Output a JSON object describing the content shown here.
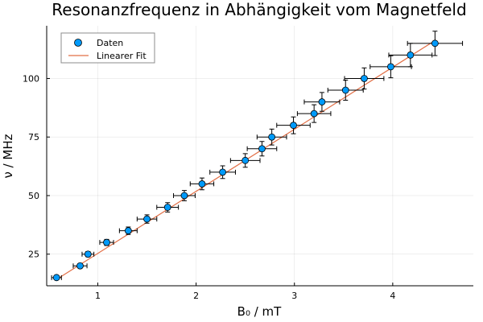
{
  "chart_data": {
    "type": "scatter",
    "title": "Resonanzfrequenz in Abhängigkeit vom Magnetfeld",
    "xlabel": "B₀ / mT",
    "ylabel": "ν / MHz",
    "xlim": [
      0.48,
      4.82
    ],
    "ylim": [
      11.5,
      122.5
    ],
    "xticks": [
      1,
      2,
      3,
      4
    ],
    "yticks": [
      25,
      50,
      75,
      100
    ],
    "grid": true,
    "legend_position": "top-left",
    "series": [
      {
        "name": "Daten",
        "type": "scatter",
        "color": "#009AFA",
        "x": [
          0.58,
          0.82,
          0.9,
          1.09,
          1.31,
          1.5,
          1.71,
          1.88,
          2.06,
          2.27,
          2.5,
          2.67,
          2.77,
          2.99,
          3.2,
          3.28,
          3.52,
          3.71,
          3.98,
          4.18,
          4.43
        ],
        "y": [
          15,
          20,
          25,
          30,
          35,
          40,
          45,
          50,
          55,
          60,
          65,
          70,
          75,
          80,
          85,
          90,
          95,
          100,
          105,
          110,
          115
        ],
        "xerr": [
          0.05,
          0.07,
          0.06,
          0.07,
          0.09,
          0.1,
          0.11,
          0.11,
          0.12,
          0.13,
          0.15,
          0.15,
          0.15,
          0.17,
          0.17,
          0.18,
          0.18,
          0.2,
          0.21,
          0.22,
          0.28
        ],
        "yerr": [
          0.7,
          0.9,
          1.1,
          1.3,
          1.6,
          1.8,
          2.0,
          2.2,
          2.5,
          2.7,
          2.9,
          3.1,
          3.4,
          3.6,
          3.8,
          4.0,
          4.3,
          4.5,
          4.7,
          5.0,
          5.2
        ]
      },
      {
        "name": "Linearer Fit",
        "type": "line",
        "color": "#E26F46",
        "x": [
          0.58,
          4.43
        ],
        "y": [
          14.2,
          116.2
        ]
      }
    ]
  }
}
